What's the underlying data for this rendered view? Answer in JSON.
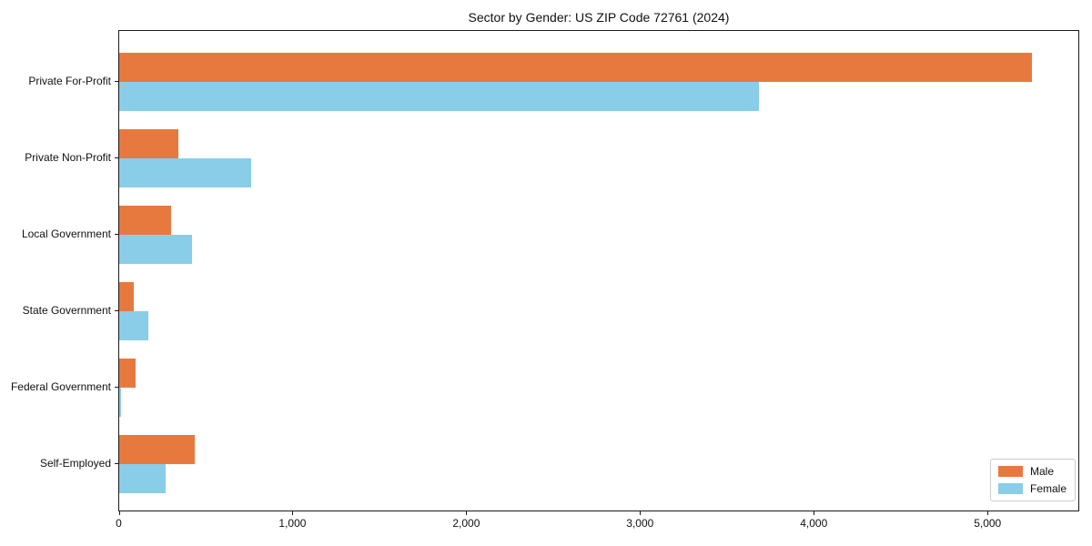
{
  "title": "Sector by Gender: US ZIP Code 72761 (2024)",
  "colors": {
    "male": "#E8793E",
    "female": "#89CDE8",
    "spine": "#1a1a1a",
    "legend_border": "#cccccc",
    "background": "#ffffff"
  },
  "legend": {
    "entries": [
      {
        "label": "Male",
        "color": "#E8793E"
      },
      {
        "label": "Female",
        "color": "#89CDE8"
      }
    ],
    "position": "lower-right"
  },
  "chart_data": {
    "type": "bar",
    "orientation": "horizontal",
    "title": "Sector by Gender: US ZIP Code 72761 (2024)",
    "xlabel": "",
    "ylabel": "",
    "categories": [
      "Private For-Profit",
      "Private Non-Profit",
      "Local Government",
      "State Government",
      "Federal Government",
      "Self-Employed"
    ],
    "series": [
      {
        "name": "Male",
        "color": "#E8793E",
        "values": [
          5255,
          340,
          300,
          85,
          95,
          435
        ]
      },
      {
        "name": "Female",
        "color": "#89CDE8",
        "values": [
          3680,
          760,
          420,
          165,
          10,
          265
        ]
      }
    ],
    "xlim": [
      0,
      5520
    ],
    "x_ticks": [
      0,
      1000,
      2000,
      3000,
      4000,
      5000
    ],
    "x_tick_labels": [
      "0",
      "1,000",
      "2,000",
      "3,000",
      "4,000",
      "5,000"
    ],
    "grid": false,
    "legend_position": "lower right"
  }
}
